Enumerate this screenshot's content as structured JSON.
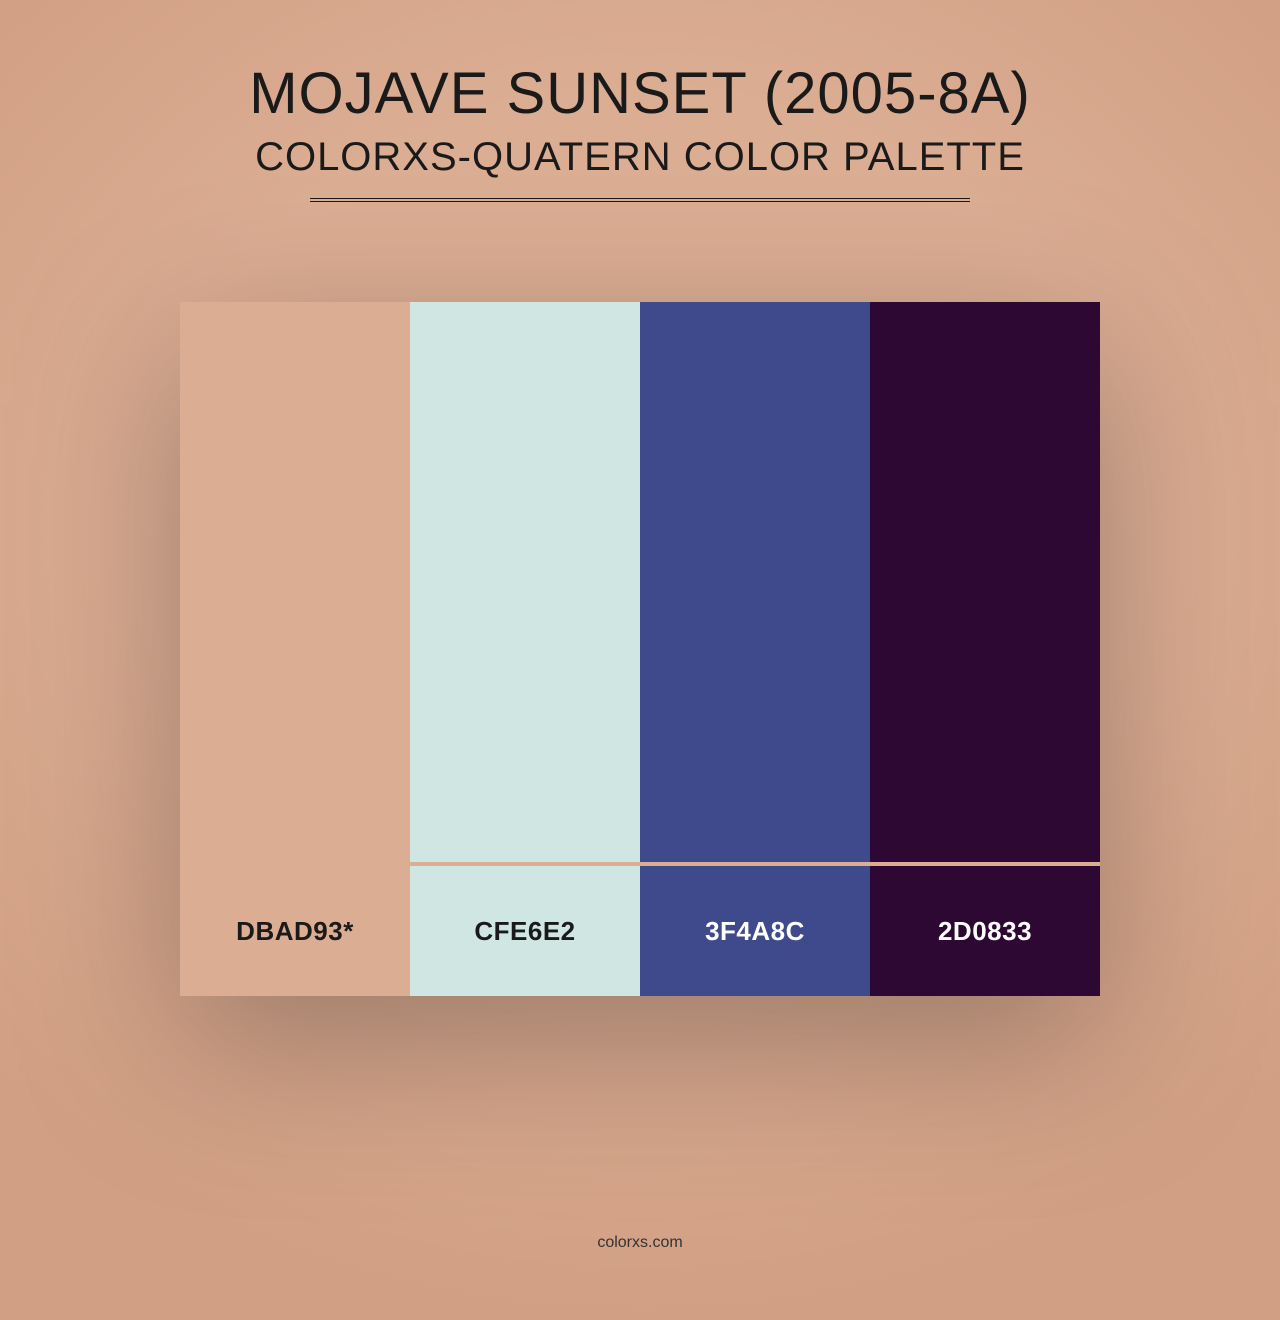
{
  "header": {
    "title": "MOJAVE SUNSET (2005-8A)",
    "subtitle": "COLORXS-QUATERN COLOR PALETTE"
  },
  "background": {
    "color": "#dbad93",
    "vignette_inner": "#dbad93",
    "vignette_outer": "#d19f83"
  },
  "palette": {
    "type": "infographic",
    "swatch_count": 4,
    "swatches": [
      {
        "hex": "#dbad93",
        "label": "DBAD93*",
        "label_color": "#1a1a1a"
      },
      {
        "hex": "#cfe6e2",
        "label": "CFE6E2",
        "label_color": "#1a1a1a"
      },
      {
        "hex": "#3f4a8c",
        "label": "3F4A8C",
        "label_color": "#ffffff"
      },
      {
        "hex": "#2d0833",
        "label": "2D0833",
        "label_color": "#ffffff"
      }
    ],
    "gap_color": "#dbad93",
    "title_fontsize": 58,
    "subtitle_fontsize": 40,
    "label_fontsize": 26,
    "swatch_main_height": 560,
    "swatch_label_height": 130,
    "palette_width": 920
  },
  "footer": {
    "text": "colorxs.com"
  }
}
